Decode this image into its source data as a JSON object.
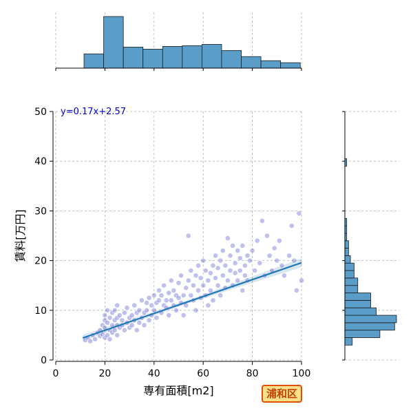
{
  "chart_data": {
    "type": "scatter",
    "x_label": "専有面積[m2]",
    "y_label": "賃料[万円]",
    "xlim": [
      0,
      100
    ],
    "ylim": [
      0,
      50
    ],
    "x_ticks": [
      "0",
      "20",
      "40",
      "60",
      "80",
      "100"
    ],
    "y_ticks": [
      "0",
      "10",
      "20",
      "30",
      "40",
      "50"
    ],
    "grid": true,
    "regression": {
      "label": "y=0.17x+2.57",
      "slope": 0.17,
      "intercept": 2.57,
      "x_range": [
        11,
        100
      ]
    },
    "badge": "浦和区",
    "colors": {
      "points": "#4b4bc8",
      "line": "#1f77b4",
      "hist": "#5a9dc8",
      "equation": "#0000cc",
      "badge_border": "#e05000",
      "badge_fill": "#ffe08a"
    },
    "marginal_x_hist": {
      "bin_edges": [
        11.5,
        19.5,
        27.5,
        35.5,
        43.5,
        51.5,
        59.5,
        67.5,
        75.5,
        83.5,
        91.5,
        99.5
      ],
      "counts": [
        21,
        76,
        31,
        28,
        32,
        33,
        35,
        26,
        17,
        11,
        8
      ]
    },
    "marginal_y_hist": {
      "bin_edges": [
        3,
        4.5,
        6,
        7.5,
        9,
        10.5,
        12,
        13.5,
        15,
        16.5,
        18,
        19.5,
        21,
        22.5,
        24,
        25.5,
        27,
        28.5,
        30,
        31.5,
        33,
        34.5,
        36,
        37.5,
        39,
        40.5
      ],
      "counts": [
        4,
        19,
        27,
        28,
        17,
        14,
        14,
        7,
        7,
        5,
        5,
        3,
        2,
        2,
        1,
        1,
        1,
        0,
        0,
        0,
        0,
        0,
        0,
        0,
        1
      ]
    },
    "points": [
      [
        12,
        4
      ],
      [
        13,
        4.5
      ],
      [
        14,
        3.8
      ],
      [
        15,
        5
      ],
      [
        16,
        4.2
      ],
      [
        17,
        5.5
      ],
      [
        18,
        4.8
      ],
      [
        18,
        6
      ],
      [
        19,
        5.2
      ],
      [
        19,
        7
      ],
      [
        20,
        4.5
      ],
      [
        20,
        6.5
      ],
      [
        20,
        8
      ],
      [
        20,
        9
      ],
      [
        21,
        5
      ],
      [
        21,
        7.5
      ],
      [
        21,
        10
      ],
      [
        22,
        4.2
      ],
      [
        22,
        6
      ],
      [
        22,
        8.5
      ],
      [
        23,
        5.5
      ],
      [
        23,
        7
      ],
      [
        23,
        9.5
      ],
      [
        24,
        6
      ],
      [
        24,
        8
      ],
      [
        24,
        10
      ],
      [
        25,
        5
      ],
      [
        25,
        7
      ],
      [
        25,
        8.5
      ],
      [
        25,
        11
      ],
      [
        26,
        6.5
      ],
      [
        26,
        9
      ],
      [
        27,
        7
      ],
      [
        27,
        8
      ],
      [
        28,
        6
      ],
      [
        28,
        9.5
      ],
      [
        29,
        7.5
      ],
      [
        29,
        10.5
      ],
      [
        30,
        6.5
      ],
      [
        30,
        8.5
      ],
      [
        31,
        7
      ],
      [
        31,
        9
      ],
      [
        32,
        8
      ],
      [
        32,
        11
      ],
      [
        33,
        6
      ],
      [
        33,
        9.5
      ],
      [
        34,
        7.5
      ],
      [
        34,
        10
      ],
      [
        35,
        8.5
      ],
      [
        35,
        12
      ],
      [
        36,
        7
      ],
      [
        36,
        9.5
      ],
      [
        37,
        10
      ],
      [
        37,
        11.5
      ],
      [
        38,
        8
      ],
      [
        38,
        12.5
      ],
      [
        39,
        9
      ],
      [
        39,
        11
      ],
      [
        40,
        10
      ],
      [
        40,
        13
      ],
      [
        41,
        8.5
      ],
      [
        41,
        11.5
      ],
      [
        42,
        12
      ],
      [
        42,
        14
      ],
      [
        43,
        9.5
      ],
      [
        43,
        13
      ],
      [
        44,
        11
      ],
      [
        44,
        15
      ],
      [
        45,
        10.5
      ],
      [
        45,
        12
      ],
      [
        46,
        13.5
      ],
      [
        46,
        9
      ],
      [
        47,
        12
      ],
      [
        47,
        16
      ],
      [
        48,
        11
      ],
      [
        48,
        14
      ],
      [
        49,
        13
      ],
      [
        49,
        10
      ],
      [
        50,
        12.5
      ],
      [
        50,
        15.5
      ],
      [
        51,
        11.5
      ],
      [
        51,
        17
      ],
      [
        52,
        13
      ],
      [
        52,
        9
      ],
      [
        53,
        14.5
      ],
      [
        53,
        11
      ],
      [
        54,
        16
      ],
      [
        54,
        25
      ],
      [
        55,
        13
      ],
      [
        55,
        18
      ],
      [
        56,
        12
      ],
      [
        56,
        15
      ],
      [
        57,
        17
      ],
      [
        57,
        10
      ],
      [
        58,
        14
      ],
      [
        58,
        19
      ],
      [
        59,
        12.5
      ],
      [
        59,
        16.5
      ],
      [
        60,
        15
      ],
      [
        60,
        20
      ],
      [
        61,
        13
      ],
      [
        61,
        18
      ],
      [
        62,
        16
      ],
      [
        62,
        11
      ],
      [
        63,
        17.5
      ],
      [
        63,
        14
      ],
      [
        64,
        19
      ],
      [
        64,
        12
      ],
      [
        65,
        16.5
      ],
      [
        65,
        21
      ],
      [
        66,
        15
      ],
      [
        66,
        18.5
      ],
      [
        67,
        13
      ],
      [
        67,
        20
      ],
      [
        68,
        17
      ],
      [
        68,
        22
      ],
      [
        69,
        14.5
      ],
      [
        69,
        19
      ],
      [
        70,
        16
      ],
      [
        70,
        24.5
      ],
      [
        71,
        18
      ],
      [
        71,
        21
      ],
      [
        72,
        15
      ],
      [
        72,
        23
      ],
      [
        73,
        17.5
      ],
      [
        73,
        19.5
      ],
      [
        74,
        16
      ],
      [
        74,
        22
      ],
      [
        75,
        18
      ],
      [
        75,
        20.5
      ],
      [
        76,
        14
      ],
      [
        76,
        23
      ],
      [
        77,
        19
      ],
      [
        77,
        17
      ],
      [
        78,
        21
      ],
      [
        78,
        16
      ],
      [
        79,
        20
      ],
      [
        80,
        22
      ],
      [
        81,
        18
      ],
      [
        82,
        24
      ],
      [
        83,
        19.5
      ],
      [
        84,
        28
      ],
      [
        85,
        17
      ],
      [
        86,
        25
      ],
      [
        87,
        21
      ],
      [
        88,
        18
      ],
      [
        89,
        22.5
      ],
      [
        90,
        20
      ],
      [
        91,
        24
      ],
      [
        92,
        19
      ],
      [
        93,
        17
      ],
      [
        95,
        21
      ],
      [
        96,
        27
      ],
      [
        97,
        20
      ],
      [
        98,
        14
      ],
      [
        99,
        29.5
      ],
      [
        100,
        16
      ]
    ]
  }
}
